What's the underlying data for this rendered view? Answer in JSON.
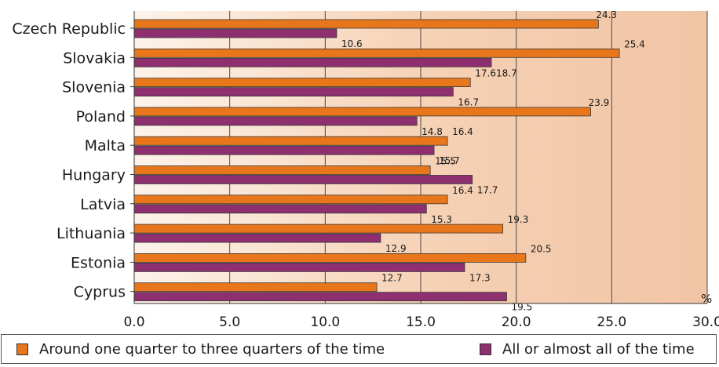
{
  "chart_data": {
    "type": "bar",
    "orientation": "horizontal",
    "categories": [
      "Czech Republic",
      "Slovakia",
      "Slovenia",
      "Poland",
      "Malta",
      "Hungary",
      "Latvia",
      "Lithuania",
      "Estonia",
      "Cyprus"
    ],
    "series": [
      {
        "name": "Around one quarter to three quarters of the time",
        "color": "#e8761a",
        "values": [
          24.3,
          25.4,
          17.6,
          23.9,
          16.4,
          15.5,
          16.4,
          19.3,
          20.5,
          12.7
        ]
      },
      {
        "name": "All or almost all of the time",
        "color": "#8e2f6f",
        "values": [
          10.6,
          18.7,
          16.7,
          14.8,
          15.7,
          17.7,
          15.3,
          12.9,
          17.3,
          19.5
        ]
      }
    ],
    "value_labels": [
      [
        "24.3",
        "25.4",
        "17.6",
        "23.9",
        "16.4",
        "15.5",
        "16.4",
        "19.3",
        "20.5",
        "12.7"
      ],
      [
        "10.6",
        "18.7",
        "16.7",
        "14.8",
        "15.7",
        "17.7",
        "15.3",
        "12.9",
        "17.3",
        "19.5"
      ]
    ],
    "xlim": [
      0,
      30
    ],
    "x_ticks": [
      "0.0",
      "5.0",
      "10.0",
      "15.0",
      "20.0",
      "25.0",
      "30.0"
    ],
    "unit": "%",
    "grid": "vertical",
    "legend_position": "bottom"
  },
  "legend": {
    "items": [
      {
        "label": "Around one quarter to three quarters of the time",
        "color": "#e8761a"
      },
      {
        "label": "All or almost all of the time",
        "color": "#8e2f6f"
      }
    ]
  }
}
